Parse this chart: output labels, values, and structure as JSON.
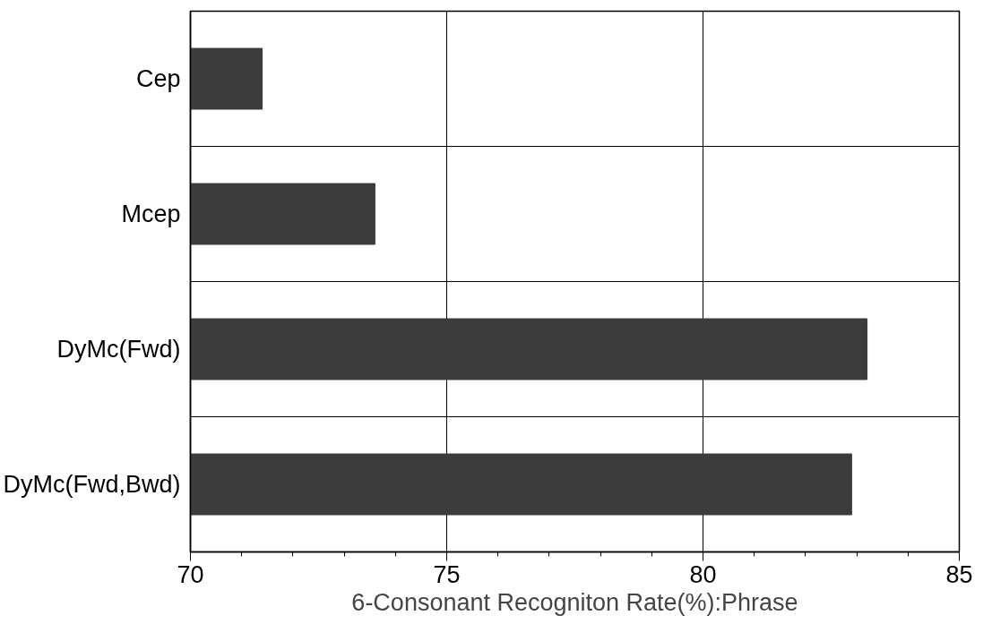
{
  "chart_data": {
    "type": "bar",
    "orientation": "horizontal",
    "xlabel": "6-Consonant Recogniton Rate(%):Phrase",
    "categories": [
      "Cep",
      "Mcep",
      "DyMc(Fwd)",
      "DyMc(Fwd,Bwd)"
    ],
    "values": [
      71.4,
      73.6,
      83.2,
      82.9
    ],
    "color": "#3c3c3c",
    "xlim": [
      70,
      85
    ],
    "xticks": [
      70,
      75,
      80,
      85
    ],
    "grid": true
  }
}
